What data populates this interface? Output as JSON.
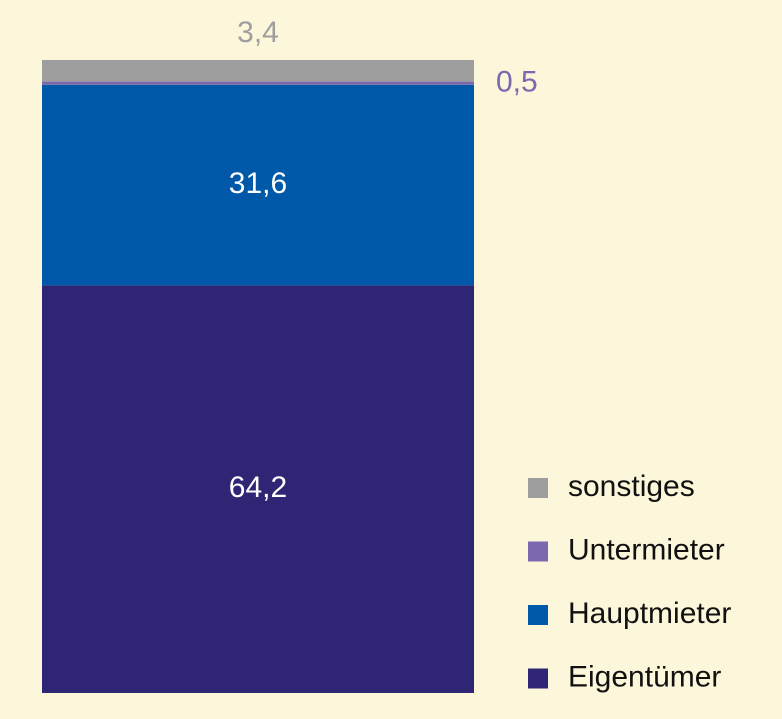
{
  "chart_data": {
    "type": "stacked_bar",
    "categories": [
      null
    ],
    "series": [
      {
        "name": "Eigentümer",
        "color": "#2e2574",
        "values": [
          64.2
        ],
        "value_labels": [
          "64,2"
        ]
      },
      {
        "name": "Hauptmieter",
        "color": "#0058a8",
        "values": [
          31.6
        ],
        "value_labels": [
          "31,6"
        ]
      },
      {
        "name": "Untermieter",
        "color": "#7b68ae",
        "values": [
          0.5
        ],
        "value_labels": [
          "0,5"
        ]
      },
      {
        "name": "sonstiges",
        "color": "#9e9e9e",
        "values": [
          3.4
        ],
        "value_labels": [
          "3,4"
        ]
      }
    ]
  }
}
